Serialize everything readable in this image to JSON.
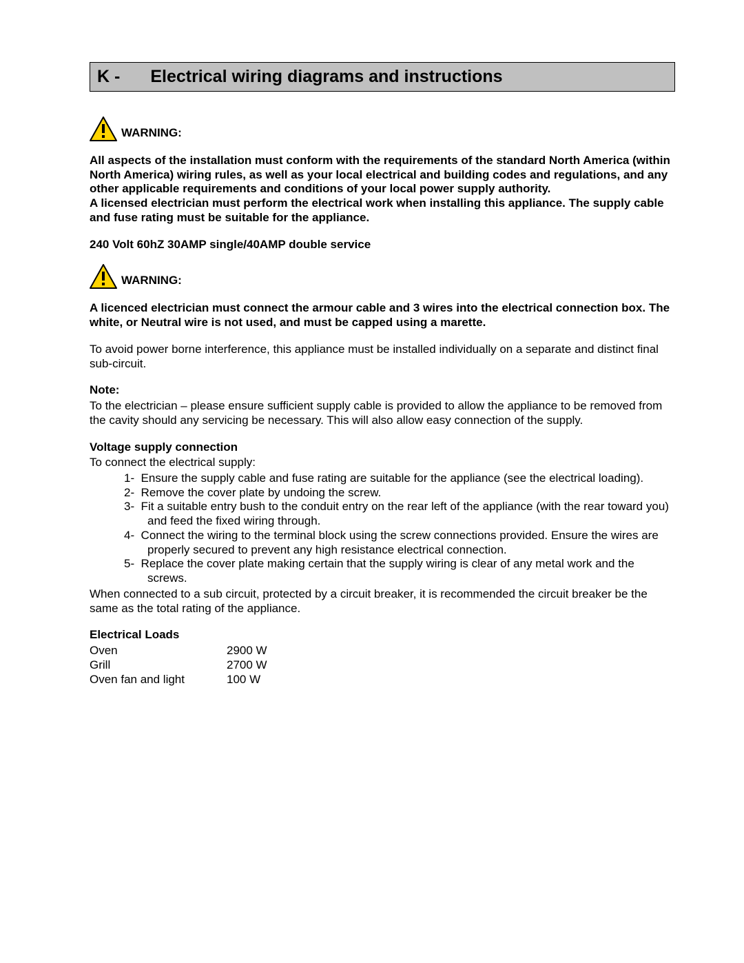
{
  "section": {
    "letter": "K -",
    "title": "Electrical wiring diagrams and instructions"
  },
  "warning1": {
    "label": "WARNING:",
    "para1": "All aspects of the installation must conform with the requirements of the standard North America (within North America) wiring rules, as well as your local electrical and building codes and regulations, and any other applicable requirements and conditions of your local power supply authority.",
    "para2": "A licensed electrician must perform the electrical work when installing this appliance. The supply cable and fuse rating must be suitable for the appliance."
  },
  "service_spec": "240 Volt 60hZ 30AMP single/40AMP double service",
  "warning2": {
    "label": "WARNING:",
    "para": "A licenced electrician must connect the armour cable and 3 wires into the electrical connection box.  The white, or Neutral wire is not used, and must be capped using a marette."
  },
  "interference_para": "To avoid power borne interference, this appliance must be installed individually on a separate and distinct final sub-circuit.",
  "note_label": "Note:",
  "note_para": "To the electrician – please ensure sufficient supply cable is provided to allow the appliance to be removed from the cavity should any servicing be necessary. This will also allow easy connection of the supply.",
  "voltage_heading": "Voltage supply connection",
  "voltage_intro": "To connect the electrical supply:",
  "steps": [
    "Ensure the supply cable and fuse rating are suitable for the appliance (see the electrical loading).",
    "Remove the cover plate by undoing the screw.",
    "Fit a suitable entry bush to the conduit entry on the rear left of the appliance (with the rear toward you) and feed the fixed wiring through.",
    "Connect the wiring to the terminal block using the screw connections provided. Ensure the wires are properly secured to prevent any high resistance electrical connection.",
    "Replace the cover plate making certain that the supply wiring is clear of any metal work and the screws."
  ],
  "breaker_para": "When connected to a sub circuit, protected by a circuit breaker, it is recommended the circuit breaker be the same as the total rating of the appliance.",
  "loads_heading": "Electrical Loads",
  "loads": [
    {
      "name": "Oven",
      "value": "2900 W"
    },
    {
      "name": "Grill",
      "value": "2700 W"
    },
    {
      "name": "Oven fan and light",
      "value": "100 W"
    }
  ],
  "icon_colors": {
    "fill": "#ffd400",
    "stroke": "#000000"
  }
}
